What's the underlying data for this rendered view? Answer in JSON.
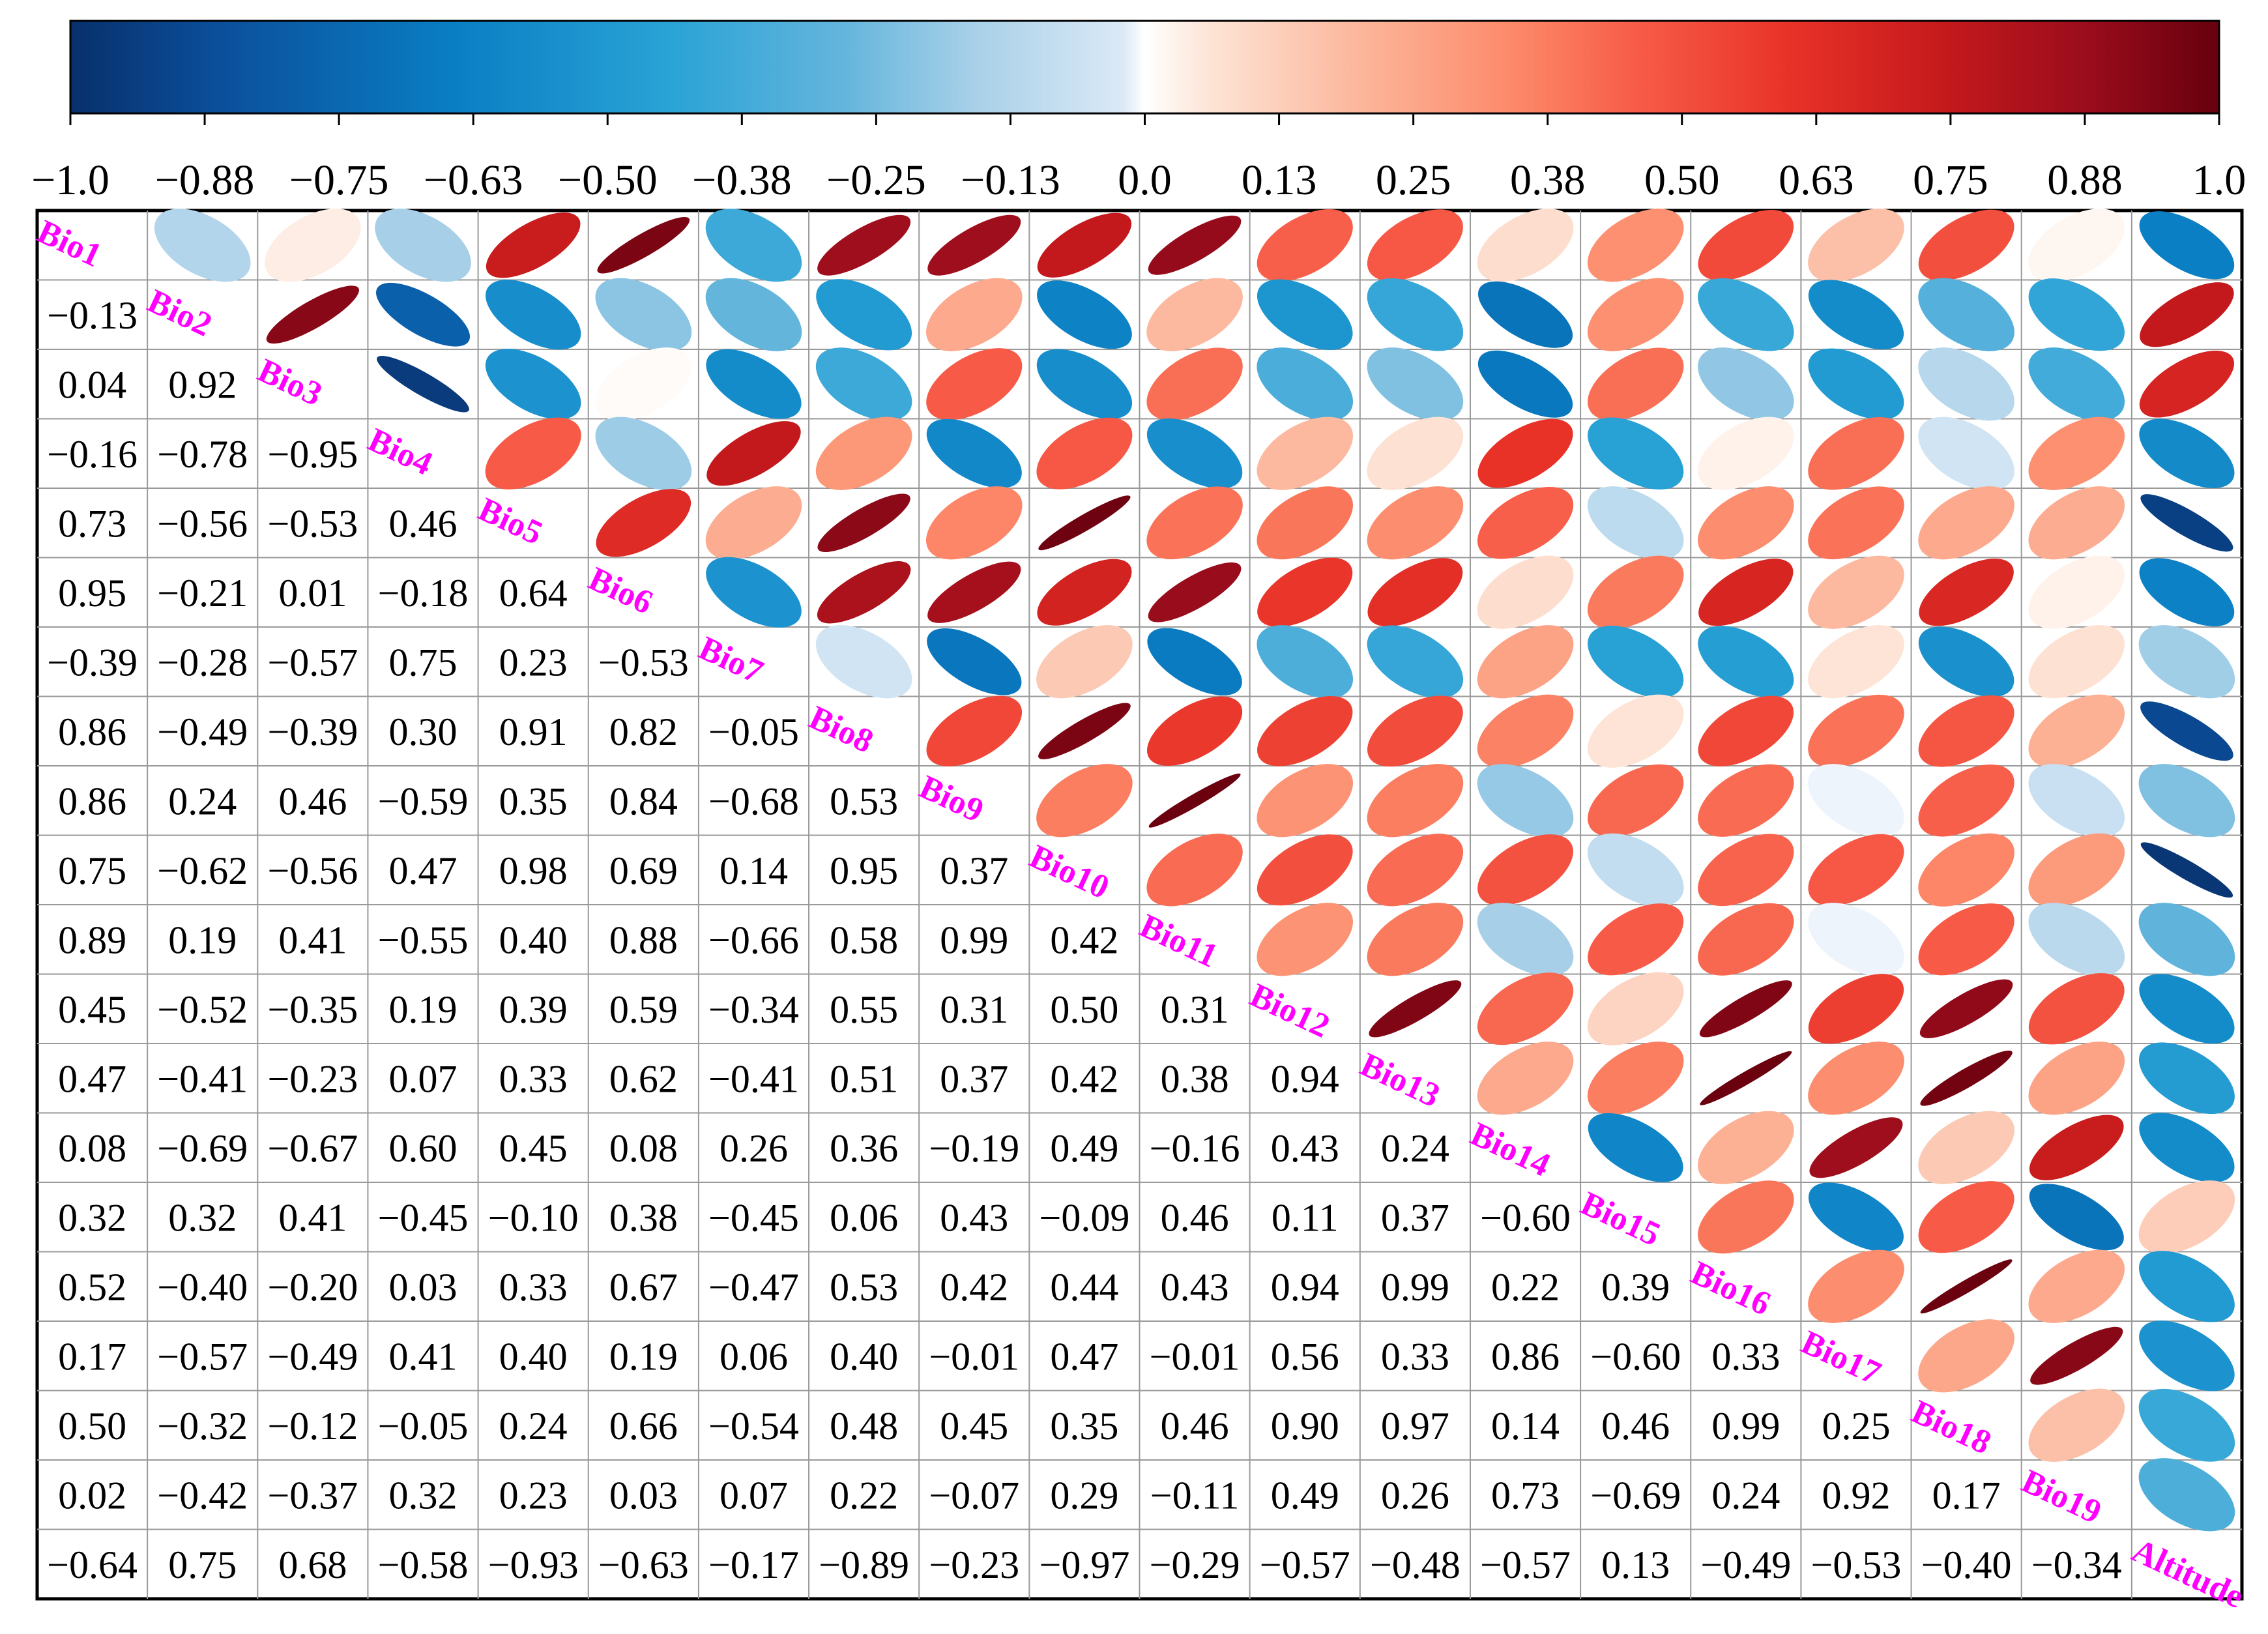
{
  "chart_data": {
    "type": "correlation-matrix",
    "variables": [
      "Bio1",
      "Bio2",
      "Bio3",
      "Bio4",
      "Bio5",
      "Bio6",
      "Bio7",
      "Bio8",
      "Bio9",
      "Bio10",
      "Bio11",
      "Bio12",
      "Bio13",
      "Bio14",
      "Bio15",
      "Bio16",
      "Bio17",
      "Bio18",
      "Bio19",
      "Altitude"
    ],
    "lower_triangle": [
      [],
      [
        -0.13
      ],
      [
        0.04,
        0.92
      ],
      [
        -0.16,
        -0.78,
        -0.95
      ],
      [
        0.73,
        -0.56,
        -0.53,
        0.46
      ],
      [
        0.95,
        -0.21,
        0.01,
        -0.18,
        0.64
      ],
      [
        -0.39,
        -0.28,
        -0.57,
        0.75,
        0.23,
        -0.53
      ],
      [
        0.86,
        -0.49,
        -0.39,
        0.3,
        0.91,
        0.82,
        -0.05
      ],
      [
        0.86,
        0.24,
        0.46,
        -0.59,
        0.35,
        0.84,
        -0.68,
        0.53
      ],
      [
        0.75,
        -0.62,
        -0.56,
        0.47,
        0.98,
        0.69,
        0.14,
        0.95,
        0.37
      ],
      [
        0.89,
        0.19,
        0.41,
        -0.55,
        0.4,
        0.88,
        -0.66,
        0.58,
        0.99,
        0.42
      ],
      [
        0.45,
        -0.52,
        -0.35,
        0.19,
        0.39,
        0.59,
        -0.34,
        0.55,
        0.31,
        0.5,
        0.31
      ],
      [
        0.47,
        -0.41,
        -0.23,
        0.07,
        0.33,
        0.62,
        -0.41,
        0.51,
        0.37,
        0.42,
        0.38,
        0.94
      ],
      [
        0.08,
        -0.69,
        -0.67,
        0.6,
        0.45,
        0.08,
        0.26,
        0.36,
        -0.19,
        0.49,
        -0.16,
        0.43,
        0.24
      ],
      [
        0.32,
        0.32,
        0.41,
        -0.45,
        -0.1,
        0.38,
        -0.45,
        0.06,
        0.43,
        -0.09,
        0.46,
        0.11,
        0.37,
        -0.6
      ],
      [
        0.52,
        -0.4,
        -0.2,
        0.03,
        0.33,
        0.67,
        -0.47,
        0.53,
        0.42,
        0.44,
        0.43,
        0.94,
        0.99,
        0.22,
        0.39
      ],
      [
        0.17,
        -0.57,
        -0.49,
        0.41,
        0.4,
        0.19,
        0.06,
        0.4,
        -0.01,
        0.47,
        -0.01,
        0.56,
        0.33,
        0.86,
        -0.6,
        0.33
      ],
      [
        0.5,
        -0.32,
        -0.12,
        -0.05,
        0.24,
        0.66,
        -0.54,
        0.48,
        0.45,
        0.35,
        0.46,
        0.9,
        0.97,
        0.14,
        0.46,
        0.99,
        0.25
      ],
      [
        0.02,
        -0.42,
        -0.37,
        0.32,
        0.23,
        0.03,
        0.07,
        0.22,
        -0.07,
        0.29,
        -0.11,
        0.49,
        0.26,
        0.73,
        -0.69,
        0.24,
        0.92,
        0.17
      ],
      [
        -0.64,
        0.75,
        0.68,
        -0.58,
        -0.93,
        -0.63,
        -0.17,
        -0.89,
        -0.23,
        -0.97,
        -0.29,
        -0.57,
        -0.48,
        -0.57,
        0.13,
        -0.49,
        -0.53,
        -0.4,
        -0.34
      ]
    ],
    "colorbar": {
      "range": [
        -1.0,
        1.0
      ],
      "tick_labels": [
        "−1.0",
        "−0.88",
        "−0.75",
        "−0.63",
        "−0.50",
        "−0.38",
        "−0.25",
        "−0.13",
        "0.0",
        "0.13",
        "0.25",
        "0.38",
        "0.50",
        "0.63",
        "0.75",
        "0.88",
        "1.0"
      ],
      "colors": [
        "#08306b",
        "#0b4f9c",
        "#0a7fc4",
        "#2aa3d6",
        "#64b5dc",
        "#a7d0e8",
        "#dbe9f6",
        "#ffffff",
        "#fde4d6",
        "#fcb69b",
        "#fc8a6a",
        "#f75b47",
        "#e83228",
        "#c61a1c",
        "#990c1c",
        "#67000d"
      ],
      "color_stops": [
        0.0,
        0.07,
        0.18,
        0.28,
        0.36,
        0.42,
        0.49,
        0.5,
        0.53,
        0.6,
        0.67,
        0.73,
        0.8,
        0.87,
        0.94,
        1.0
      ]
    },
    "upper_triangle_glyph": "ellipse",
    "label_color": "#ff00ff"
  }
}
